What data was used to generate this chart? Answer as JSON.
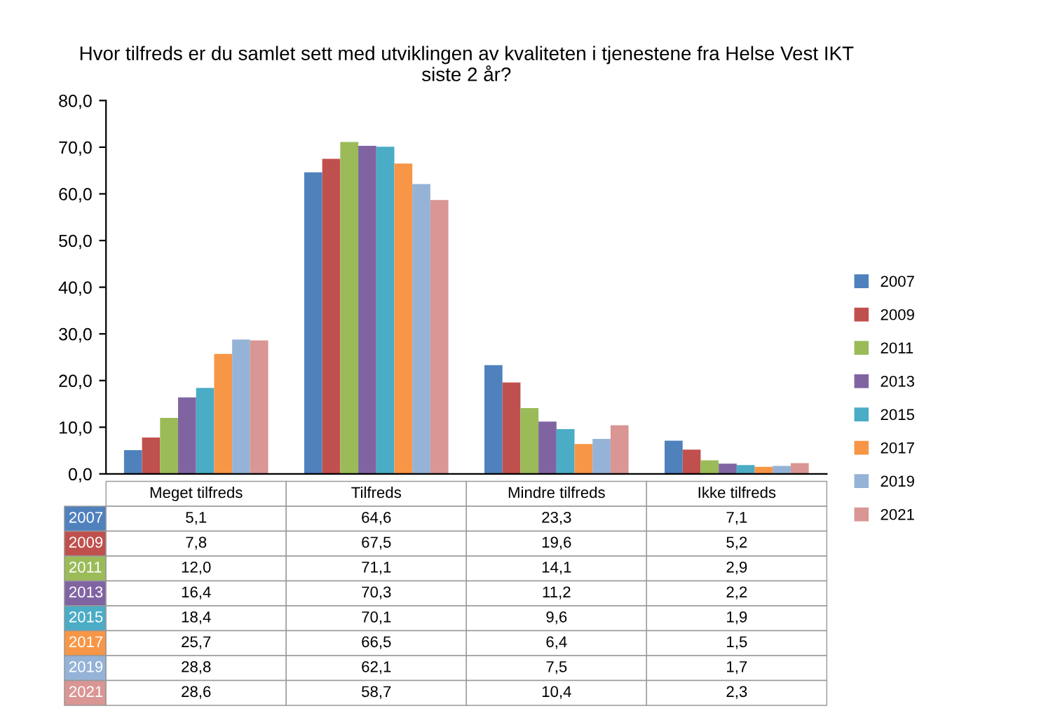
{
  "chart_data": {
    "type": "bar",
    "title": "Hvor tilfreds er du samlet sett med utviklingen av kvaliteten i tjenestene fra Helse Vest IKT\nsiste 2 år?",
    "categories": [
      "Meget tilfreds",
      "Tilfreds",
      "Mindre tilfreds",
      "Ikke tilfreds"
    ],
    "series": [
      {
        "name": "2007",
        "color": "#4f81bd",
        "values": [
          5.1,
          64.6,
          23.3,
          7.1
        ],
        "value_labels": [
          "5,1",
          "64,6",
          "23,3",
          "7,1"
        ]
      },
      {
        "name": "2009",
        "color": "#c0504d",
        "values": [
          7.8,
          67.5,
          19.6,
          5.2
        ],
        "value_labels": [
          "7,8",
          "67,5",
          "19,6",
          "5,2"
        ]
      },
      {
        "name": "2011",
        "color": "#9bbb59",
        "values": [
          12.0,
          71.1,
          14.1,
          2.9
        ],
        "value_labels": [
          "12,0",
          "71,1",
          "14,1",
          "2,9"
        ]
      },
      {
        "name": "2013",
        "color": "#8064a2",
        "values": [
          16.4,
          70.3,
          11.2,
          2.2
        ],
        "value_labels": [
          "16,4",
          "70,3",
          "11,2",
          "2,2"
        ]
      },
      {
        "name": "2015",
        "color": "#4bacc6",
        "values": [
          18.4,
          70.1,
          9.6,
          1.9
        ],
        "value_labels": [
          "18,4",
          "70,1",
          "9,6",
          "1,9"
        ]
      },
      {
        "name": "2017",
        "color": "#f79646",
        "values": [
          25.7,
          66.5,
          6.4,
          1.5
        ],
        "value_labels": [
          "25,7",
          "66,5",
          "6,4",
          "1,5"
        ]
      },
      {
        "name": "2019",
        "color": "#95b3d7",
        "values": [
          28.8,
          62.1,
          7.5,
          1.7
        ],
        "value_labels": [
          "28,8",
          "62,1",
          "7,5",
          "1,7"
        ]
      },
      {
        "name": "2021",
        "color": "#d99694",
        "values": [
          28.6,
          58.7,
          10.4,
          2.3
        ],
        "value_labels": [
          "28,6",
          "58,7",
          "10,4",
          "2,3"
        ]
      }
    ],
    "ylim": [
      0,
      80
    ],
    "yticks": [
      {
        "value": 0,
        "label": "0,0"
      },
      {
        "value": 10,
        "label": "10,0"
      },
      {
        "value": 20,
        "label": "20,0"
      },
      {
        "value": 30,
        "label": "30,0"
      },
      {
        "value": 40,
        "label": "40,0"
      },
      {
        "value": 50,
        "label": "50,0"
      },
      {
        "value": 60,
        "label": "60,0"
      },
      {
        "value": 70,
        "label": "70,0"
      },
      {
        "value": 80,
        "label": "80,0"
      }
    ],
    "legend": "right"
  }
}
